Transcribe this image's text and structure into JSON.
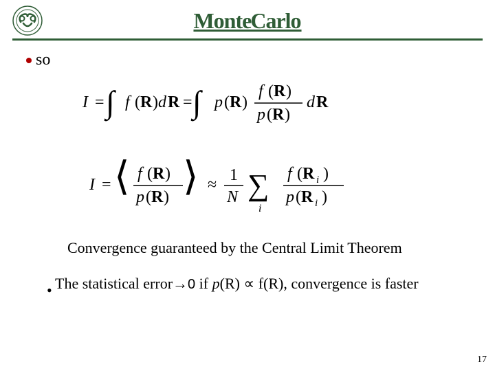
{
  "title_text": "Monte Carlo",
  "title_color": "#2f5d36",
  "hr_color": "#2f5d36",
  "logo": {
    "color": "#2f5d36",
    "bg": "#ffffff",
    "size": 44
  },
  "bullet1": {
    "text": "so",
    "color": "#000000",
    "bullet_color": "#b00000",
    "fontsize": 24
  },
  "equations": {
    "text_color": "#000000",
    "background": "#ffffff",
    "eq1_fontsize": 24,
    "eq2_fontsize": 24,
    "eq1": {
      "symbols": {
        "I": "I",
        "f": "f",
        "R": "R",
        "d": "d",
        "p": "p",
        "eq": "=",
        "integral": "∫",
        "frac_f_top": "f",
        "frac_p_bot": "p",
        "paren_open": "(",
        "paren_close": ")"
      }
    },
    "eq2": {
      "symbols": {
        "I": "I",
        "f": "f",
        "R": "R",
        "p": "p",
        "N": "N",
        "1": "1",
        "angle_l": "⟨",
        "angle_r": "⟩",
        "approx": "≈",
        "sum": "∑",
        "i": "i",
        "sub_i": "i"
      }
    }
  },
  "convergence_text": "Convergence guaranteed by the Central Limit Theorem",
  "stat_error": {
    "prefix": "The statistical error",
    "arrow": "→",
    "zero": "0",
    "if": " if ",
    "p": "p",
    "R1": "R",
    "prop": " ∝ ",
    "fR": "f(R), convergence is faster",
    "bullet": "•"
  },
  "page_number": "17",
  "fontsize_body": 22,
  "fontsize_pagenum": 14
}
